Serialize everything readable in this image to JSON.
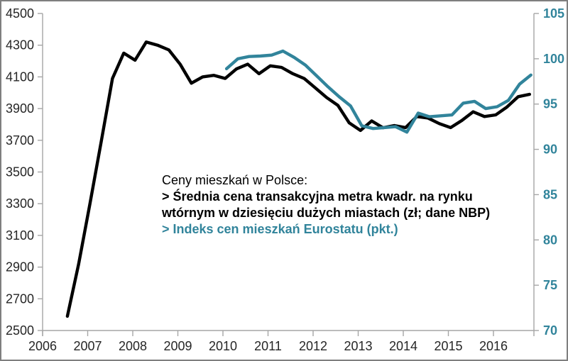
{
  "annotation": {
    "title": "Ceny mieszkań w Polsce:",
    "nbp_line1": "> Średnia cena transakcyjna metra kwadr. na rynku",
    "nbp_line2": "wtórnym w dziesięciu dużych miastach (zł; dane NBP)",
    "eurostat_line": "> Indeks cen mieszkań Eurostatu (pkt.)"
  },
  "colors": {
    "price_line": "#000000",
    "index_line": "#31849B",
    "axis_line": "#A6A6A6",
    "axis_text": "#262626",
    "frame": "#7F7F7F",
    "background": "#FFFFFF"
  },
  "chart_data": {
    "type": "line",
    "title": "Ceny mieszkań w Polsce",
    "x_axis": {
      "ticks": [
        2006,
        2007,
        2008,
        2009,
        2010,
        2011,
        2012,
        2013,
        2014,
        2015,
        2016
      ],
      "min": 2006,
      "max": 2016.9,
      "grid": false
    },
    "y_left": {
      "min": 2500,
      "max": 4500,
      "step": 200,
      "ticks": [
        4500,
        4300,
        4100,
        3900,
        3700,
        3500,
        3300,
        3100,
        2900,
        2700,
        2500
      ],
      "label": "Średnia cena transakcyjna (zł)"
    },
    "y_right": {
      "min": 70,
      "max": 105,
      "step": 5,
      "ticks": [
        105,
        100,
        95,
        90,
        85,
        80,
        75,
        70
      ],
      "label": "Indeks cen mieszkań Eurostatu (pkt.)"
    },
    "series": [
      {
        "name": "Średnia cena transakcyjna metra kwadr. na rynku wtórnym w dziesięciu dużych miastach (zł; dane NBP)",
        "axis": "left",
        "color_key": "price_line",
        "start": 2006.55,
        "interval_years": 0.25,
        "values": [
          2590,
          2920,
          3300,
          3690,
          4090,
          4250,
          4205,
          4320,
          4300,
          4270,
          4180,
          4060,
          4100,
          4110,
          4090,
          4150,
          4180,
          4120,
          4170,
          4160,
          4120,
          4090,
          4030,
          3970,
          3920,
          3810,
          3762,
          3822,
          3779,
          3793,
          3780,
          3850,
          3840,
          3805,
          3780,
          3825,
          3880,
          3850,
          3860,
          3910,
          3975,
          3990
        ]
      },
      {
        "name": "Indeks cen mieszkań Eurostatu (pkt.)",
        "axis": "right",
        "color_key": "index_line",
        "start": 2010.08,
        "interval_years": 0.25,
        "values": [
          98.9,
          100.0,
          100.25,
          100.3,
          100.4,
          100.85,
          100.15,
          99.3,
          98.1,
          96.9,
          95.8,
          94.8,
          92.6,
          92.3,
          92.4,
          92.5,
          91.9,
          94.0,
          93.6,
          93.7,
          93.8,
          95.1,
          95.3,
          94.5,
          94.7,
          95.4,
          97.2,
          98.2
        ]
      }
    ]
  }
}
